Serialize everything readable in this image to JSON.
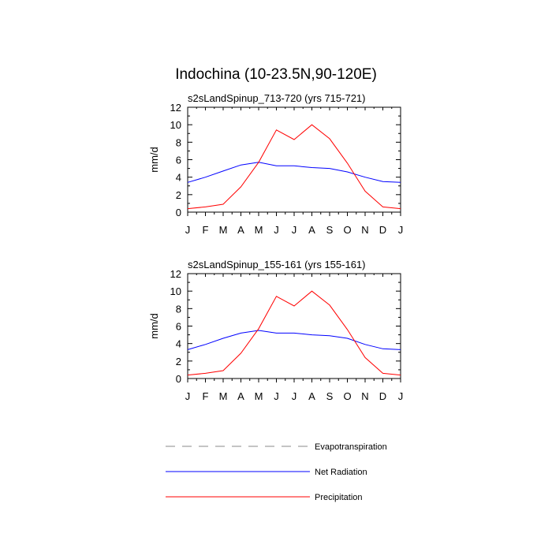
{
  "figure": {
    "title": "Indochina (10-23.5N,90-120E)"
  },
  "chart_data": [
    {
      "type": "line",
      "title": "s2sLandSpinup_713-720 (yrs 715-721)",
      "xlabel": "",
      "ylabel": "mm/d",
      "categories": [
        "J",
        "F",
        "M",
        "A",
        "M",
        "J",
        "J",
        "A",
        "S",
        "O",
        "N",
        "D",
        "J"
      ],
      "ylim": [
        0,
        12
      ],
      "yticks": [
        0,
        2,
        4,
        6,
        8,
        10,
        12
      ],
      "series": [
        {
          "name": "Net Radiation",
          "color": "#0000ff",
          "values": [
            3.4,
            4.0,
            4.7,
            5.4,
            5.7,
            5.3,
            5.3,
            5.1,
            5.0,
            4.6,
            4.0,
            3.5,
            3.4
          ]
        },
        {
          "name": "Precipitation",
          "color": "#ff0000",
          "values": [
            0.4,
            0.6,
            0.9,
            2.9,
            5.7,
            9.4,
            8.3,
            10.0,
            8.4,
            5.6,
            2.4,
            0.6,
            0.4
          ]
        }
      ]
    },
    {
      "type": "line",
      "title": "s2sLandSpinup_155-161 (yrs 155-161)",
      "xlabel": "",
      "ylabel": "mm/d",
      "categories": [
        "J",
        "F",
        "M",
        "A",
        "M",
        "J",
        "J",
        "A",
        "S",
        "O",
        "N",
        "D",
        "J"
      ],
      "ylim": [
        0,
        12
      ],
      "yticks": [
        0,
        2,
        4,
        6,
        8,
        10,
        12
      ],
      "series": [
        {
          "name": "Net Radiation",
          "color": "#0000ff",
          "values": [
            3.3,
            3.9,
            4.6,
            5.2,
            5.5,
            5.2,
            5.2,
            5.0,
            4.9,
            4.6,
            3.9,
            3.4,
            3.3
          ]
        },
        {
          "name": "Precipitation",
          "color": "#ff0000",
          "values": [
            0.4,
            0.6,
            0.9,
            2.9,
            5.7,
            9.4,
            8.3,
            10.0,
            8.4,
            5.6,
            2.4,
            0.6,
            0.4
          ]
        }
      ]
    }
  ],
  "legend": {
    "items": [
      {
        "label": "Evapotranspiration",
        "color": "#888888",
        "style": "dashed"
      },
      {
        "label": "Net Radiation",
        "color": "#0000ff",
        "style": "solid"
      },
      {
        "label": "Precipitation",
        "color": "#ff0000",
        "style": "solid"
      }
    ]
  }
}
